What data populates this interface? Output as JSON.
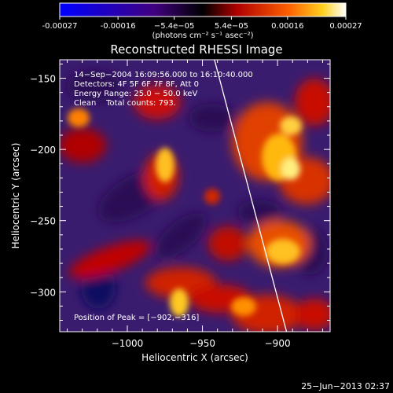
{
  "chart_data": {
    "type": "heatmap",
    "title": "Reconstructed RHESSI Image",
    "xlabel": "Heliocentric X (arcsec)",
    "ylabel": "Heliocentric Y (arcsec)",
    "xlim": [
      -1045,
      -865
    ],
    "ylim": [
      -328,
      -137
    ],
    "x_ticks": [
      -1000,
      -950,
      -900
    ],
    "y_ticks": [
      -300,
      -250,
      -200,
      -150
    ],
    "x_tick_labels": [
      "−1000",
      "−950",
      "−900"
    ],
    "y_tick_labels": [
      "−300",
      "−250",
      "−200",
      "−150"
    ],
    "colorbar": {
      "range": [
        -0.00027,
        0.00027
      ],
      "ticks": [
        -0.00027,
        -0.00016,
        -5.4e-05,
        5.4e-05,
        0.00016,
        0.00027
      ],
      "tick_labels": [
        "-0.00027",
        "-0.00016",
        "−5.4e−05",
        "5.4e−05",
        "0.00016",
        "0.00027"
      ],
      "units_label": "(photons cm⁻² s⁻¹ asec⁻²)"
    },
    "info_lines": [
      "14−Sep−2004 16:09:56.000 to 16:10:40.000",
      "Detectors: 4F 5F 6F 7F 8F, Att 0",
      "Energy Range: 25.0 − 50.0 keV",
      "Clean    Total counts: 793."
    ],
    "peak_label": "Position of Peak = [−902,−316]",
    "peak_position": [
      -902,
      -316
    ],
    "limb_line": [
      [
        -942,
        -137
      ],
      [
        -894,
        -328
      ]
    ],
    "footer_date": "25−Jun−2013 02:37"
  }
}
